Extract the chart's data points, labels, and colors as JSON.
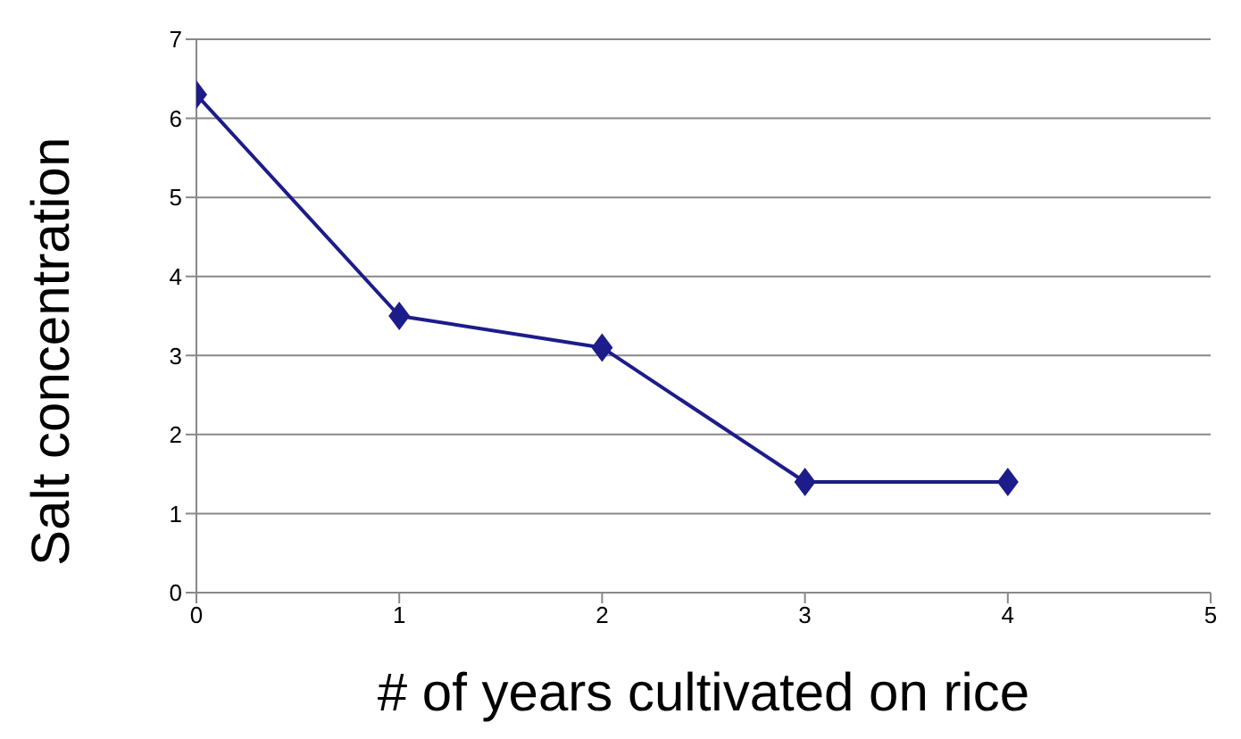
{
  "chart_data": {
    "type": "line",
    "xlabel": "# of years cultivated on rice",
    "ylabel": "Salt concentration",
    "x": [
      0,
      1,
      2,
      3,
      4
    ],
    "series": [
      {
        "color": "#1c1c8a",
        "values": [
          6.3,
          3.5,
          3.1,
          1.4,
          1.4
        ]
      }
    ],
    "xlim": [
      0,
      5
    ],
    "xticks": [
      0,
      1,
      2,
      3,
      4,
      5
    ],
    "ylim": [
      0,
      7
    ],
    "yticks": [
      0,
      1,
      2,
      3,
      4,
      5,
      6,
      7
    ],
    "grid": "y",
    "marker": "diamond",
    "line_style": "solid"
  }
}
